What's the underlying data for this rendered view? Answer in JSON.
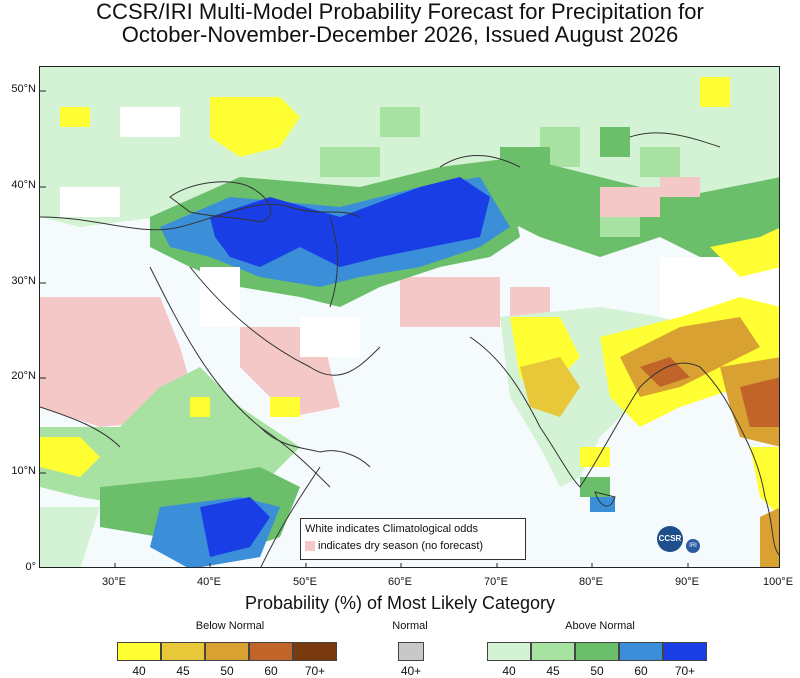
{
  "title_line1": "CCSR/IRI Multi-Model Probability Forecast for Precipitation for",
  "title_line2": "October-November-December 2026, Issued August 2026",
  "lat_labels": [
    "50°N",
    "40°N",
    "30°N",
    "20°N",
    "10°N",
    "0°"
  ],
  "lon_labels": [
    "30°E",
    "40°E",
    "50°E",
    "60°E",
    "70°E",
    "80°E",
    "90°E",
    "100°E"
  ],
  "note_line1": "White indicates Climatological odds",
  "note_line2": "indicates dry season (no forecast)",
  "logo_text": "CCSR",
  "logo2_text": "IRI",
  "colorbar_title": "Probability (%) of Most Likely Category",
  "categories": {
    "below": "Below Normal",
    "normal": "Normal",
    "above": "Above Normal"
  },
  "below_levels": [
    {
      "label": "40",
      "color": "#ffff33"
    },
    {
      "label": "45",
      "color": "#e8c838"
    },
    {
      "label": "50",
      "color": "#d9a032"
    },
    {
      "label": "60",
      "color": "#c0642a"
    },
    {
      "label": "70+",
      "color": "#7a3a10"
    }
  ],
  "normal_level": {
    "label": "40+",
    "color": "#c8c8c8"
  },
  "above_levels": [
    {
      "label": "40",
      "color": "#d4f2d4"
    },
    {
      "label": "45",
      "color": "#a8e2a2"
    },
    {
      "label": "50",
      "color": "#6bbf6b"
    },
    {
      "label": "60",
      "color": "#3a8fd8"
    },
    {
      "label": "70+",
      "color": "#1a3ee6"
    }
  ],
  "map_colors": {
    "ocean": "#f5fafd",
    "dry": "#f5c8c8",
    "coast": "#333333"
  }
}
